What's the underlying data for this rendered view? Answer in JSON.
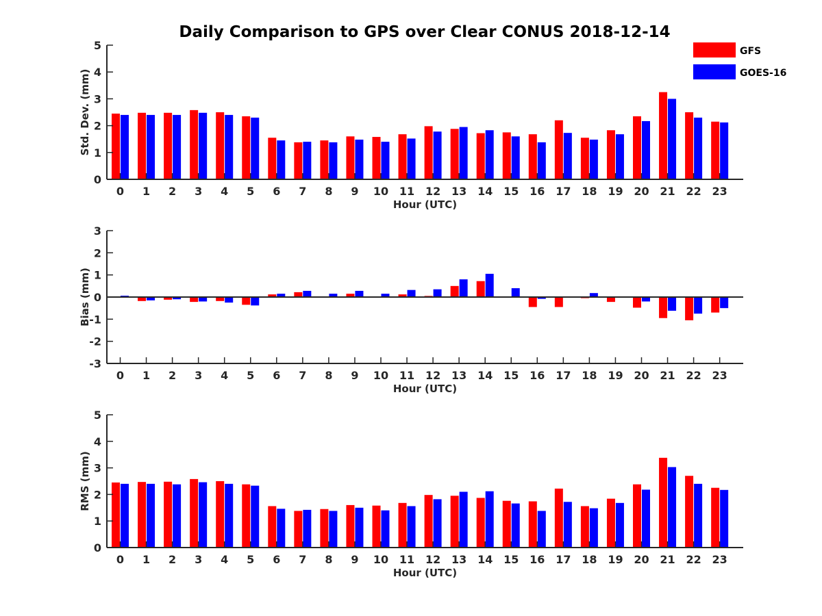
{
  "title": "Daily Comparison to GPS over Clear CONUS 2018-12-14",
  "legend": [
    {
      "name": "GFS",
      "color": "#ff0000"
    },
    {
      "name": "GOES-16",
      "color": "#0000ff"
    }
  ],
  "chart_data": [
    {
      "type": "bar",
      "ylabel": "Std. Dev. (mm)",
      "xlabel": "Hour (UTC)",
      "ylim": [
        0,
        5
      ],
      "yticks": [
        0,
        1,
        2,
        3,
        4,
        5
      ],
      "categories": [
        "0",
        "1",
        "2",
        "3",
        "4",
        "5",
        "6",
        "7",
        "8",
        "9",
        "10",
        "11",
        "12",
        "13",
        "14",
        "15",
        "16",
        "17",
        "18",
        "19",
        "20",
        "21",
        "22",
        "23"
      ],
      "series": [
        {
          "name": "GFS",
          "values": [
            2.45,
            2.48,
            2.48,
            2.58,
            2.5,
            2.35,
            1.55,
            1.38,
            1.45,
            1.6,
            1.58,
            1.68,
            1.98,
            1.88,
            1.72,
            1.75,
            1.68,
            2.2,
            1.55,
            1.83,
            2.35,
            3.25,
            2.5,
            2.15
          ]
        },
        {
          "name": "GOES-16",
          "values": [
            2.4,
            2.4,
            2.4,
            2.48,
            2.4,
            2.3,
            1.45,
            1.4,
            1.38,
            1.48,
            1.4,
            1.52,
            1.78,
            1.95,
            1.83,
            1.6,
            1.38,
            1.73,
            1.48,
            1.68,
            2.17,
            3.0,
            2.3,
            2.12
          ]
        }
      ]
    },
    {
      "type": "bar",
      "ylabel": "Bias (mm)",
      "xlabel": "Hour (UTC)",
      "ylim": [
        -3,
        3
      ],
      "yticks": [
        -3,
        -2,
        -1,
        0,
        1,
        2,
        3
      ],
      "categories": [
        "0",
        "1",
        "2",
        "3",
        "4",
        "5",
        "6",
        "7",
        "8",
        "9",
        "10",
        "11",
        "12",
        "13",
        "14",
        "15",
        "16",
        "17",
        "18",
        "19",
        "20",
        "21",
        "22",
        "23"
      ],
      "series": [
        {
          "name": "GFS",
          "values": [
            0.0,
            -0.18,
            -0.12,
            -0.22,
            -0.18,
            -0.35,
            0.12,
            0.22,
            0.0,
            0.15,
            0.0,
            0.12,
            0.05,
            0.5,
            0.72,
            0.0,
            -0.45,
            -0.45,
            -0.05,
            -0.22,
            -0.48,
            -0.95,
            -1.05,
            -0.7
          ]
        },
        {
          "name": "GOES-16",
          "values": [
            0.06,
            -0.15,
            -0.1,
            -0.2,
            -0.25,
            -0.38,
            0.15,
            0.28,
            0.15,
            0.28,
            0.15,
            0.32,
            0.35,
            0.8,
            1.05,
            0.4,
            -0.08,
            0.0,
            0.18,
            0.02,
            -0.2,
            -0.62,
            -0.75,
            -0.5
          ]
        }
      ]
    },
    {
      "type": "bar",
      "ylabel": "RMS (mm)",
      "xlabel": "Hour (UTC)",
      "ylim": [
        0,
        5
      ],
      "yticks": [
        0,
        1,
        2,
        3,
        4,
        5
      ],
      "categories": [
        "0",
        "1",
        "2",
        "3",
        "4",
        "5",
        "6",
        "7",
        "8",
        "9",
        "10",
        "11",
        "12",
        "13",
        "14",
        "15",
        "16",
        "17",
        "18",
        "19",
        "20",
        "21",
        "22",
        "23"
      ],
      "series": [
        {
          "name": "GFS",
          "values": [
            2.45,
            2.47,
            2.48,
            2.58,
            2.5,
            2.38,
            1.56,
            1.38,
            1.45,
            1.6,
            1.58,
            1.68,
            1.98,
            1.95,
            1.87,
            1.76,
            1.74,
            2.22,
            1.56,
            1.84,
            2.38,
            3.38,
            2.7,
            2.25
          ]
        },
        {
          "name": "GOES-16",
          "values": [
            2.4,
            2.4,
            2.38,
            2.46,
            2.4,
            2.33,
            1.46,
            1.42,
            1.38,
            1.5,
            1.4,
            1.56,
            1.82,
            2.1,
            2.12,
            1.66,
            1.38,
            1.72,
            1.48,
            1.68,
            2.18,
            3.03,
            2.4,
            2.17
          ]
        }
      ]
    }
  ]
}
